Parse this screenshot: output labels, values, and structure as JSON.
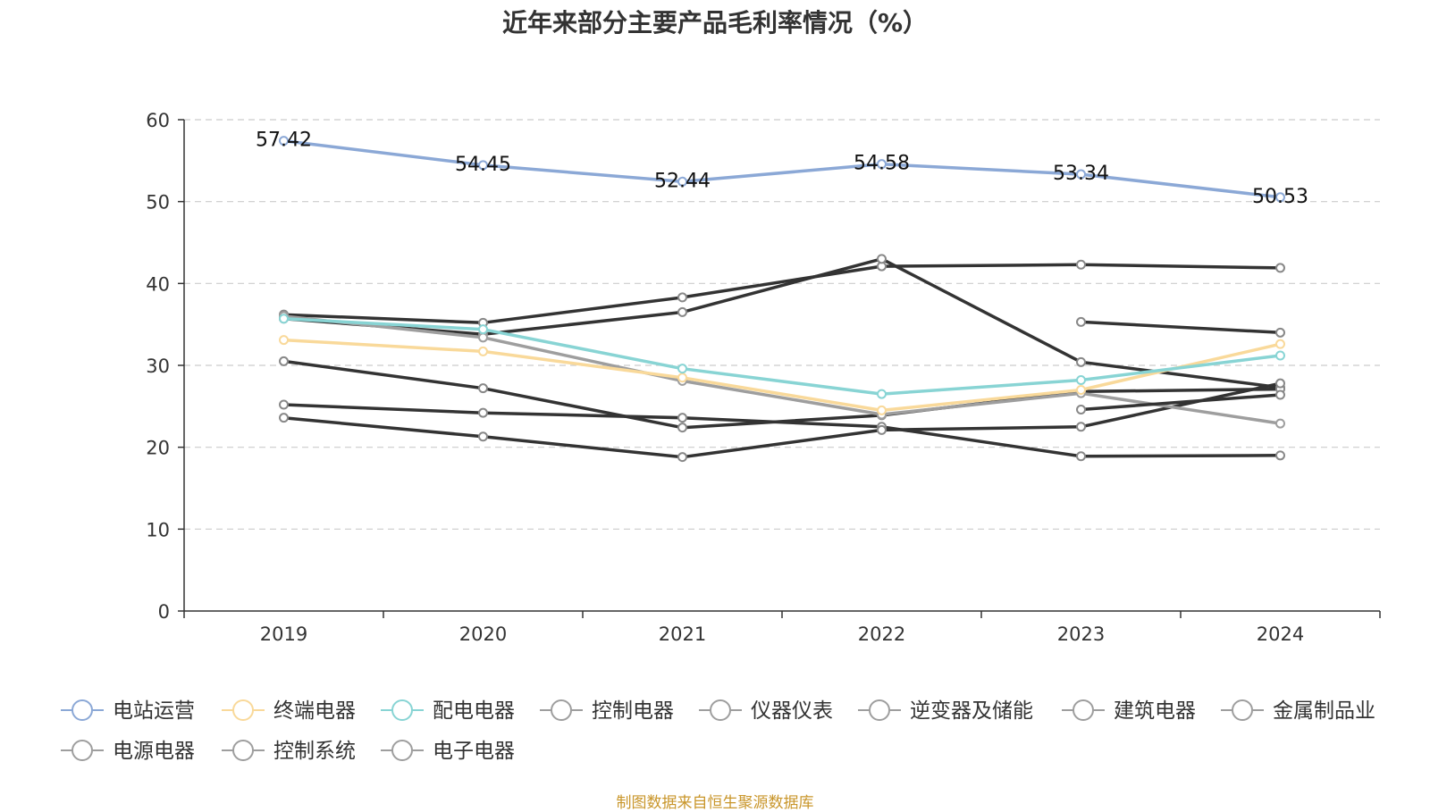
{
  "chart_data": {
    "type": "line",
    "title": "近年来部分主要产品毛利率情况（%）",
    "xlabel": "",
    "ylabel": "",
    "x": [
      "2019",
      "2020",
      "2021",
      "2022",
      "2023",
      "2024"
    ],
    "ylim": [
      0,
      60
    ],
    "yticks": [
      0,
      10,
      20,
      30,
      40,
      50,
      60
    ],
    "grid": true,
    "legend_position": "bottom",
    "series": [
      {
        "name": "电站运营",
        "color": "#8ba8d6",
        "values": [
          57.42,
          54.45,
          52.44,
          54.58,
          53.34,
          50.53
        ],
        "labels": [
          "57.42",
          "54.45",
          "52.44",
          "54.58",
          "53.34",
          "50.53"
        ]
      },
      {
        "name": "终端电器",
        "color": "#f9d99a",
        "values": [
          33.1,
          31.7,
          28.5,
          24.5,
          27.0,
          32.6
        ]
      },
      {
        "name": "配电电器",
        "color": "#88d4d4",
        "values": [
          35.7,
          34.4,
          29.6,
          26.5,
          28.2,
          31.2
        ]
      },
      {
        "name": "控制电器",
        "color": "#333333",
        "values": [
          36.2,
          35.2,
          38.3,
          42.1,
          42.3,
          41.9
        ]
      },
      {
        "name": "仪器仪表",
        "color": "#333333",
        "values": [
          35.7,
          33.8,
          36.5,
          43.0,
          30.4,
          27.3
        ]
      },
      {
        "name": "逆变器及储能",
        "color": "#333333",
        "values": [
          null,
          null,
          null,
          null,
          35.3,
          34.0
        ]
      },
      {
        "name": "建筑电器",
        "color": "#333333",
        "values": [
          30.5,
          27.2,
          22.4,
          23.9,
          26.8,
          27.1
        ]
      },
      {
        "name": "金属制品业",
        "color": "#333333",
        "values": [
          25.2,
          24.2,
          23.6,
          22.5,
          18.9,
          19.0
        ]
      },
      {
        "name": "电源电器",
        "color": "#333333",
        "values": [
          23.6,
          21.3,
          18.8,
          22.1,
          22.5,
          27.8
        ]
      },
      {
        "name": "控制系统",
        "color": "#9e9e9e",
        "values": [
          36.0,
          33.4,
          28.1,
          24.0,
          26.6,
          22.9
        ]
      },
      {
        "name": "电子电器",
        "color": "#333333",
        "values": [
          null,
          null,
          null,
          null,
          24.6,
          26.4
        ]
      }
    ]
  },
  "source_note": "制图数据来自恒生聚源数据库"
}
